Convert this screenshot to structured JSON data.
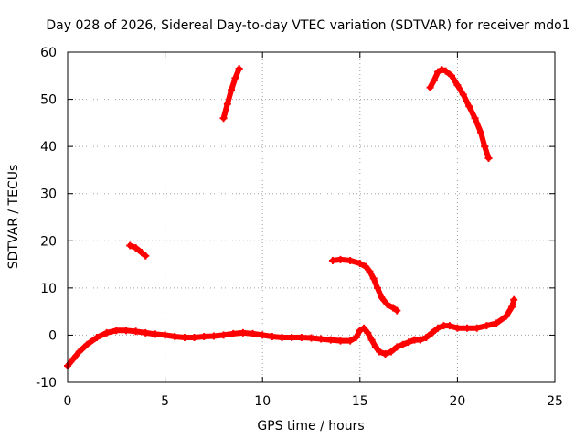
{
  "chart_data": {
    "type": "scatter",
    "title": "Day 028 of 2026, Sidereal Day-to-day VTEC variation (SDTVAR) for receiver mdo1",
    "xlabel": "GPS time / hours",
    "ylabel": "SDTVAR / TECUs",
    "xlim": [
      0,
      25
    ],
    "ylim": [
      -10,
      60
    ],
    "xticks": [
      0,
      5,
      10,
      15,
      20,
      25
    ],
    "yticks": [
      -10,
      0,
      10,
      20,
      30,
      40,
      50,
      60
    ],
    "grid": true,
    "marker": "+",
    "color": "#ff0000",
    "series": [
      {
        "name": "main-track",
        "points": [
          [
            0,
            -6.5
          ],
          [
            0.3,
            -5
          ],
          [
            0.6,
            -3.5
          ],
          [
            1.0,
            -2
          ],
          [
            1.5,
            -0.5
          ],
          [
            2.0,
            0.5
          ],
          [
            2.5,
            1
          ],
          [
            3.0,
            1
          ],
          [
            3.5,
            0.8
          ],
          [
            4.0,
            0.5
          ],
          [
            4.5,
            0.2
          ],
          [
            5.0,
            0
          ],
          [
            5.5,
            -0.3
          ],
          [
            6.0,
            -0.5
          ],
          [
            6.5,
            -0.5
          ],
          [
            7.0,
            -0.3
          ],
          [
            7.5,
            -0.2
          ],
          [
            8.0,
            0
          ],
          [
            8.5,
            0.3
          ],
          [
            9.0,
            0.5
          ],
          [
            9.5,
            0.3
          ],
          [
            10.0,
            0
          ],
          [
            10.5,
            -0.3
          ],
          [
            11.0,
            -0.5
          ],
          [
            11.5,
            -0.5
          ],
          [
            12.0,
            -0.5
          ],
          [
            12.5,
            -0.6
          ],
          [
            13.0,
            -0.8
          ],
          [
            13.5,
            -1
          ],
          [
            14.0,
            -1.2
          ],
          [
            14.5,
            -1.2
          ],
          [
            14.8,
            -0.5
          ],
          [
            15.0,
            1
          ],
          [
            15.2,
            1.5
          ],
          [
            15.4,
            0.5
          ],
          [
            15.6,
            -1
          ],
          [
            15.8,
            -2.5
          ],
          [
            16.0,
            -3.5
          ],
          [
            16.3,
            -4
          ],
          [
            16.6,
            -3.5
          ],
          [
            16.9,
            -2.5
          ],
          [
            17.2,
            -2
          ],
          [
            17.5,
            -1.5
          ],
          [
            17.8,
            -1
          ],
          [
            18.1,
            -1
          ],
          [
            18.4,
            -0.5
          ],
          [
            18.7,
            0.5
          ],
          [
            19.0,
            1.5
          ],
          [
            19.3,
            2
          ],
          [
            19.6,
            2
          ],
          [
            20.0,
            1.5
          ],
          [
            20.5,
            1.5
          ],
          [
            21.0,
            1.5
          ],
          [
            21.5,
            2
          ],
          [
            22.0,
            2.5
          ],
          [
            22.5,
            4
          ],
          [
            22.8,
            6
          ],
          [
            22.9,
            7.5
          ]
        ]
      },
      {
        "name": "short-arc",
        "points": [
          [
            3.2,
            19
          ],
          [
            3.5,
            18.5
          ],
          [
            3.8,
            17.5
          ],
          [
            4.0,
            16.8
          ]
        ]
      },
      {
        "name": "rising-arc",
        "points": [
          [
            8.0,
            46
          ],
          [
            8.2,
            49
          ],
          [
            8.4,
            52
          ],
          [
            8.6,
            54.5
          ],
          [
            8.8,
            56.5
          ]
        ]
      },
      {
        "name": "mid-arc",
        "points": [
          [
            13.6,
            15.8
          ],
          [
            14.0,
            16
          ],
          [
            14.5,
            15.8
          ],
          [
            15.0,
            15.2
          ],
          [
            15.3,
            14.5
          ],
          [
            15.5,
            13.5
          ],
          [
            15.7,
            12
          ],
          [
            15.9,
            10
          ],
          [
            16.1,
            8
          ],
          [
            16.4,
            6.5
          ],
          [
            16.7,
            5.8
          ],
          [
            16.9,
            5.2
          ]
        ]
      },
      {
        "name": "high-arc",
        "points": [
          [
            18.6,
            52.5
          ],
          [
            18.8,
            54
          ],
          [
            19.0,
            55.8
          ],
          [
            19.2,
            56.3
          ],
          [
            19.4,
            56
          ],
          [
            19.7,
            55
          ],
          [
            20.0,
            53
          ],
          [
            20.3,
            51
          ],
          [
            20.6,
            48.5
          ],
          [
            20.9,
            46
          ],
          [
            21.2,
            43
          ],
          [
            21.4,
            40
          ],
          [
            21.6,
            37.5
          ]
        ]
      }
    ]
  }
}
